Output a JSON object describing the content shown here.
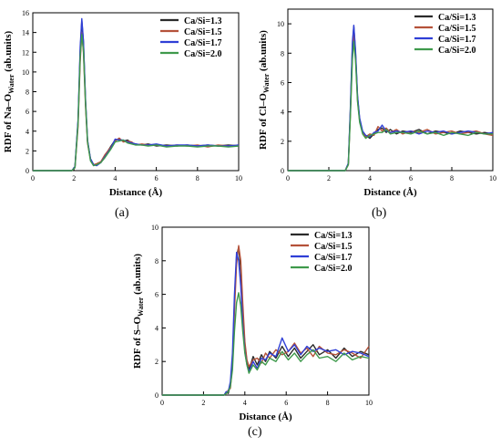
{
  "colors": {
    "series": [
      "#2b2b2b",
      "#b5523a",
      "#2f3fd6",
      "#3f9a4c"
    ]
  },
  "chart_data": [
    {
      "id": "a",
      "type": "line",
      "panel_label": "(a)",
      "xlabel": "Distance (Å)",
      "ylabel": {
        "prefix": "RDF of Na",
        "dash": "–",
        "mid": "O",
        "sub": "Water",
        "suffix": " (ab.units)"
      },
      "xlim": [
        0,
        10
      ],
      "ylim": [
        0,
        16
      ],
      "xticks": [
        0,
        2,
        4,
        6,
        8,
        10
      ],
      "yticks": [
        0,
        2,
        4,
        6,
        8,
        10,
        12,
        14,
        16
      ],
      "legend_position": "top-right",
      "series": [
        {
          "name": "Ca/Si=1.3",
          "x": [
            0,
            1.9,
            2.05,
            2.2,
            2.3,
            2.38,
            2.46,
            2.56,
            2.66,
            2.8,
            2.95,
            3.1,
            3.3,
            3.5,
            3.8,
            4.0,
            4.2,
            4.4,
            4.6,
            4.8,
            5.0,
            5.3,
            5.6,
            6.0,
            6.5,
            7.0,
            7.5,
            8.0,
            8.5,
            9.0,
            9.5,
            10.0
          ],
          "y": [
            0,
            0,
            0.4,
            5.0,
            12.0,
            15.2,
            13.0,
            7.0,
            3.0,
            1.2,
            0.6,
            0.6,
            0.8,
            1.5,
            2.5,
            3.1,
            3.2,
            3.0,
            3.1,
            2.8,
            2.7,
            2.6,
            2.7,
            2.5,
            2.6,
            2.5,
            2.6,
            2.5,
            2.6,
            2.5,
            2.6,
            2.5
          ]
        },
        {
          "name": "Ca/Si=1.5",
          "x": [
            0,
            1.9,
            2.05,
            2.2,
            2.3,
            2.38,
            2.46,
            2.56,
            2.66,
            2.8,
            2.95,
            3.1,
            3.3,
            3.5,
            3.8,
            4.0,
            4.2,
            4.4,
            4.6,
            4.8,
            5.0,
            5.3,
            5.6,
            6.0,
            6.5,
            7.0,
            7.5,
            8.0,
            8.5,
            9.0,
            9.5,
            10.0
          ],
          "y": [
            0,
            0,
            0.3,
            4.5,
            11.0,
            14.0,
            12.0,
            6.5,
            2.8,
            1.1,
            0.6,
            0.7,
            0.9,
            1.6,
            2.4,
            3.0,
            3.3,
            2.9,
            3.0,
            2.9,
            2.6,
            2.7,
            2.6,
            2.6,
            2.5,
            2.6,
            2.5,
            2.6,
            2.4,
            2.6,
            2.5,
            2.6
          ]
        },
        {
          "name": "Ca/Si=1.7",
          "x": [
            0,
            1.9,
            2.05,
            2.2,
            2.3,
            2.38,
            2.46,
            2.56,
            2.66,
            2.8,
            2.95,
            3.1,
            3.3,
            3.5,
            3.8,
            4.0,
            4.2,
            4.4,
            4.6,
            4.8,
            5.0,
            5.3,
            5.6,
            6.0,
            6.5,
            7.0,
            7.5,
            8.0,
            8.5,
            9.0,
            9.5,
            10.0
          ],
          "y": [
            0,
            0,
            0.4,
            5.2,
            12.5,
            15.4,
            13.2,
            7.2,
            3.1,
            1.2,
            0.6,
            0.5,
            0.8,
            1.4,
            2.3,
            3.2,
            3.1,
            3.1,
            2.9,
            2.8,
            2.7,
            2.6,
            2.6,
            2.7,
            2.5,
            2.6,
            2.6,
            2.5,
            2.6,
            2.5,
            2.5,
            2.6
          ]
        },
        {
          "name": "Ca/Si=2.0",
          "x": [
            0,
            1.9,
            2.05,
            2.2,
            2.3,
            2.38,
            2.46,
            2.56,
            2.66,
            2.8,
            2.95,
            3.1,
            3.3,
            3.5,
            3.8,
            4.0,
            4.2,
            4.4,
            4.6,
            4.8,
            5.0,
            5.3,
            5.6,
            6.0,
            6.5,
            7.0,
            7.5,
            8.0,
            8.5,
            9.0,
            9.5,
            10.0
          ],
          "y": [
            0,
            0,
            0.3,
            4.8,
            11.5,
            13.8,
            12.2,
            6.8,
            2.9,
            1.0,
            0.5,
            0.6,
            0.8,
            1.3,
            2.2,
            2.9,
            3.0,
            3.1,
            2.8,
            2.7,
            2.6,
            2.6,
            2.5,
            2.6,
            2.4,
            2.5,
            2.5,
            2.4,
            2.5,
            2.5,
            2.4,
            2.5
          ]
        }
      ]
    },
    {
      "id": "b",
      "type": "line",
      "panel_label": "(b)",
      "xlabel": "Distance (Å)",
      "ylabel": {
        "prefix": "RDF of Cl",
        "dash": "–",
        "mid": "O",
        "sub": "Water",
        "suffix": " (ab.units)"
      },
      "xlim": [
        0,
        10
      ],
      "ylim": [
        0,
        11
      ],
      "xticks": [
        0,
        2,
        4,
        6,
        8,
        10
      ],
      "yticks": [
        0,
        2,
        4,
        6,
        8,
        10
      ],
      "legend_position": "top-right",
      "series": [
        {
          "name": "Ca/Si=1.3",
          "x": [
            0,
            2.8,
            2.95,
            3.05,
            3.15,
            3.22,
            3.3,
            3.4,
            3.5,
            3.65,
            3.8,
            4.0,
            4.2,
            4.4,
            4.6,
            4.8,
            5.0,
            5.3,
            5.6,
            6.0,
            6.4,
            6.8,
            7.2,
            7.6,
            8.0,
            8.4,
            8.8,
            9.2,
            9.6,
            10.0
          ],
          "y": [
            0,
            0,
            0.5,
            4.0,
            8.5,
            9.8,
            8.0,
            5.0,
            3.5,
            2.6,
            2.4,
            2.2,
            2.5,
            2.8,
            2.9,
            2.6,
            2.8,
            2.5,
            2.7,
            2.6,
            2.8,
            2.5,
            2.7,
            2.6,
            2.5,
            2.7,
            2.6,
            2.5,
            2.6,
            2.5
          ]
        },
        {
          "name": "Ca/Si=1.5",
          "x": [
            0,
            2.8,
            2.95,
            3.05,
            3.15,
            3.22,
            3.3,
            3.4,
            3.5,
            3.65,
            3.8,
            4.0,
            4.2,
            4.4,
            4.6,
            4.8,
            5.0,
            5.3,
            5.6,
            6.0,
            6.4,
            6.8,
            7.2,
            7.6,
            8.0,
            8.4,
            8.8,
            9.2,
            9.6,
            10.0
          ],
          "y": [
            0,
            0,
            0.4,
            3.8,
            8.0,
            9.3,
            7.8,
            4.8,
            3.4,
            2.6,
            2.3,
            2.5,
            2.4,
            3.0,
            2.7,
            2.9,
            2.6,
            2.8,
            2.5,
            2.7,
            2.6,
            2.8,
            2.5,
            2.6,
            2.7,
            2.5,
            2.6,
            2.7,
            2.5,
            2.4
          ]
        },
        {
          "name": "Ca/Si=1.7",
          "x": [
            0,
            2.8,
            2.95,
            3.05,
            3.15,
            3.22,
            3.3,
            3.4,
            3.5,
            3.65,
            3.8,
            4.0,
            4.2,
            4.4,
            4.6,
            4.8,
            5.0,
            5.3,
            5.6,
            6.0,
            6.4,
            6.8,
            7.2,
            7.6,
            8.0,
            8.4,
            8.8,
            9.2,
            9.6,
            10.0
          ],
          "y": [
            0,
            0,
            0.5,
            4.2,
            8.8,
            9.9,
            8.2,
            5.1,
            3.6,
            2.7,
            2.4,
            2.3,
            2.6,
            2.7,
            3.1,
            2.7,
            2.6,
            2.7,
            2.6,
            2.7,
            2.5,
            2.7,
            2.6,
            2.7,
            2.5,
            2.6,
            2.7,
            2.6,
            2.5,
            2.6
          ]
        },
        {
          "name": "Ca/Si=2.0",
          "x": [
            0,
            2.8,
            2.95,
            3.05,
            3.15,
            3.22,
            3.3,
            3.4,
            3.5,
            3.65,
            3.8,
            4.0,
            4.2,
            4.4,
            4.6,
            4.8,
            5.0,
            5.3,
            5.6,
            6.0,
            6.4,
            6.8,
            7.2,
            7.6,
            8.0,
            8.4,
            8.8,
            9.2,
            9.6,
            10.0
          ],
          "y": [
            0,
            0,
            0.4,
            3.6,
            7.6,
            8.8,
            7.5,
            4.7,
            3.3,
            2.5,
            2.2,
            2.4,
            2.5,
            2.6,
            2.6,
            2.8,
            2.5,
            2.6,
            2.6,
            2.5,
            2.7,
            2.5,
            2.6,
            2.4,
            2.6,
            2.5,
            2.4,
            2.6,
            2.5,
            2.5
          ]
        }
      ]
    },
    {
      "id": "c",
      "type": "line",
      "panel_label": "(c)",
      "xlabel": "Distance (Å)",
      "ylabel": {
        "prefix": "RDF of S",
        "dash": "–",
        "mid": "O",
        "sub": "Water",
        "suffix": " (ab.units)"
      },
      "xlim": [
        0,
        10
      ],
      "ylim": [
        0,
        10
      ],
      "xticks": [
        0,
        2,
        4,
        6,
        8,
        10
      ],
      "yticks": [
        0,
        2,
        4,
        6,
        8,
        10
      ],
      "legend_position": "top-right",
      "series": [
        {
          "name": "Ca/Si=1.3",
          "x": [
            0,
            3.0,
            3.1,
            3.2,
            3.3,
            3.4,
            3.5,
            3.6,
            3.7,
            3.8,
            3.9,
            4.0,
            4.1,
            4.2,
            4.4,
            4.6,
            4.8,
            5.0,
            5.2,
            5.5,
            5.8,
            6.1,
            6.4,
            6.7,
            7.0,
            7.3,
            7.6,
            8.0,
            8.4,
            8.8,
            9.2,
            9.6,
            10.0
          ],
          "y": [
            0,
            0,
            0.2,
            0.1,
            0.6,
            2.0,
            5.5,
            8.3,
            8.8,
            7.5,
            5.0,
            3.0,
            2.0,
            1.5,
            2.3,
            1.8,
            2.4,
            2.0,
            2.6,
            2.2,
            2.9,
            2.3,
            2.8,
            2.2,
            2.6,
            3.0,
            2.4,
            2.7,
            2.2,
            2.8,
            2.3,
            2.6,
            2.4
          ]
        },
        {
          "name": "Ca/Si=1.5",
          "x": [
            0,
            3.0,
            3.1,
            3.2,
            3.3,
            3.4,
            3.5,
            3.6,
            3.7,
            3.8,
            3.9,
            4.0,
            4.1,
            4.2,
            4.4,
            4.6,
            4.8,
            5.0,
            5.2,
            5.5,
            5.8,
            6.1,
            6.4,
            6.7,
            7.0,
            7.3,
            7.6,
            8.0,
            8.4,
            8.8,
            9.2,
            9.6,
            10.0
          ],
          "y": [
            0,
            0,
            0.1,
            0.3,
            0.4,
            1.8,
            5.0,
            7.8,
            8.9,
            8.0,
            5.5,
            3.2,
            2.1,
            1.7,
            2.1,
            2.2,
            1.9,
            2.5,
            2.2,
            2.7,
            2.4,
            2.6,
            3.1,
            2.5,
            2.8,
            2.3,
            2.9,
            2.5,
            2.4,
            2.7,
            2.5,
            2.2,
            2.9
          ]
        },
        {
          "name": "Ca/Si=1.7",
          "x": [
            0,
            3.0,
            3.1,
            3.2,
            3.3,
            3.4,
            3.5,
            3.6,
            3.7,
            3.8,
            3.9,
            4.0,
            4.1,
            4.2,
            4.4,
            4.6,
            4.8,
            5.0,
            5.2,
            5.5,
            5.8,
            6.1,
            6.4,
            6.7,
            7.0,
            7.3,
            7.6,
            8.0,
            8.4,
            8.8,
            9.2,
            9.6,
            10.0
          ],
          "y": [
            0,
            0,
            0.2,
            0.2,
            0.8,
            2.5,
            6.0,
            8.5,
            8.0,
            6.5,
            4.2,
            2.6,
            1.8,
            1.4,
            2.0,
            1.6,
            2.2,
            2.1,
            2.5,
            2.3,
            3.4,
            2.6,
            3.0,
            2.4,
            2.9,
            2.6,
            2.8,
            2.6,
            2.7,
            2.4,
            2.6,
            2.5,
            2.3
          ]
        },
        {
          "name": "Ca/Si=2.0",
          "x": [
            0,
            3.0,
            3.1,
            3.2,
            3.3,
            3.4,
            3.5,
            3.6,
            3.7,
            3.8,
            3.9,
            4.0,
            4.1,
            4.2,
            4.4,
            4.6,
            4.8,
            5.0,
            5.2,
            5.5,
            5.8,
            6.1,
            6.4,
            6.7,
            7.0,
            7.3,
            7.6,
            8.0,
            8.4,
            8.8,
            9.2,
            9.6,
            10.0
          ],
          "y": [
            0,
            0,
            0.1,
            0.2,
            0.5,
            1.5,
            3.8,
            5.5,
            6.1,
            5.3,
            3.8,
            2.5,
            1.8,
            1.3,
            1.8,
            1.5,
            2.0,
            1.8,
            2.2,
            2.0,
            2.6,
            2.1,
            2.5,
            2.0,
            2.4,
            2.7,
            2.2,
            2.3,
            2.0,
            2.5,
            2.1,
            2.3,
            2.2
          ]
        }
      ]
    }
  ]
}
